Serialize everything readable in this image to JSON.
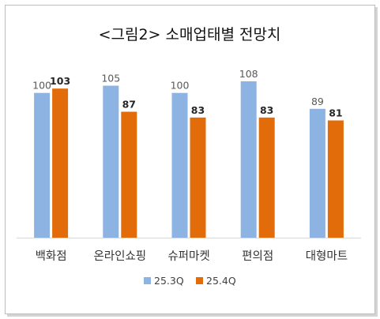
{
  "chart_data": {
    "type": "bar",
    "title": "<그림2> 소매업태별 전망치",
    "categories": [
      "백화점",
      "온라인쇼핑",
      "슈퍼마켓",
      "편의점",
      "대형마트"
    ],
    "series": [
      {
        "name": "25.3Q",
        "values": [
          100,
          105,
          100,
          108,
          89
        ],
        "color": "#8db3e2",
        "label_bold": false
      },
      {
        "name": "25.4Q",
        "values": [
          103,
          87,
          83,
          83,
          81
        ],
        "color": "#e36c0a",
        "label_bold": true
      }
    ],
    "ylim": [
      0,
      120
    ],
    "grid": false,
    "legend": "bottom",
    "axis_color": "#d9d9d9"
  }
}
